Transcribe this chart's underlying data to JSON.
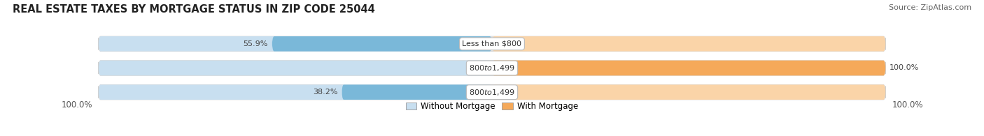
{
  "title": "REAL ESTATE TAXES BY MORTGAGE STATUS IN ZIP CODE 25044",
  "source": "Source: ZipAtlas.com",
  "rows": [
    {
      "label": "Less than $800",
      "without_mortgage": 55.9,
      "with_mortgage": 0.0
    },
    {
      "label": "$800 to $1,499",
      "without_mortgage": 0.0,
      "with_mortgage": 100.0
    },
    {
      "label": "$800 to $1,499",
      "without_mortgage": 38.2,
      "with_mortgage": 0.0
    }
  ],
  "without_mortgage_color": "#7ab8d9",
  "with_mortgage_color": "#f5a95a",
  "without_mortgage_light": "#c8dff0",
  "with_mortgage_light": "#fad4a8",
  "bar_bg_color": "#ebebeb",
  "bar_height": 0.62,
  "max_value": 100.0,
  "left_label": "100.0%",
  "right_label": "100.0%",
  "legend_without": "Without Mortgage",
  "legend_with": "With Mortgage",
  "title_fontsize": 10.5,
  "source_fontsize": 8,
  "label_fontsize": 8,
  "tick_fontsize": 8.5,
  "legend_fontsize": 8.5
}
